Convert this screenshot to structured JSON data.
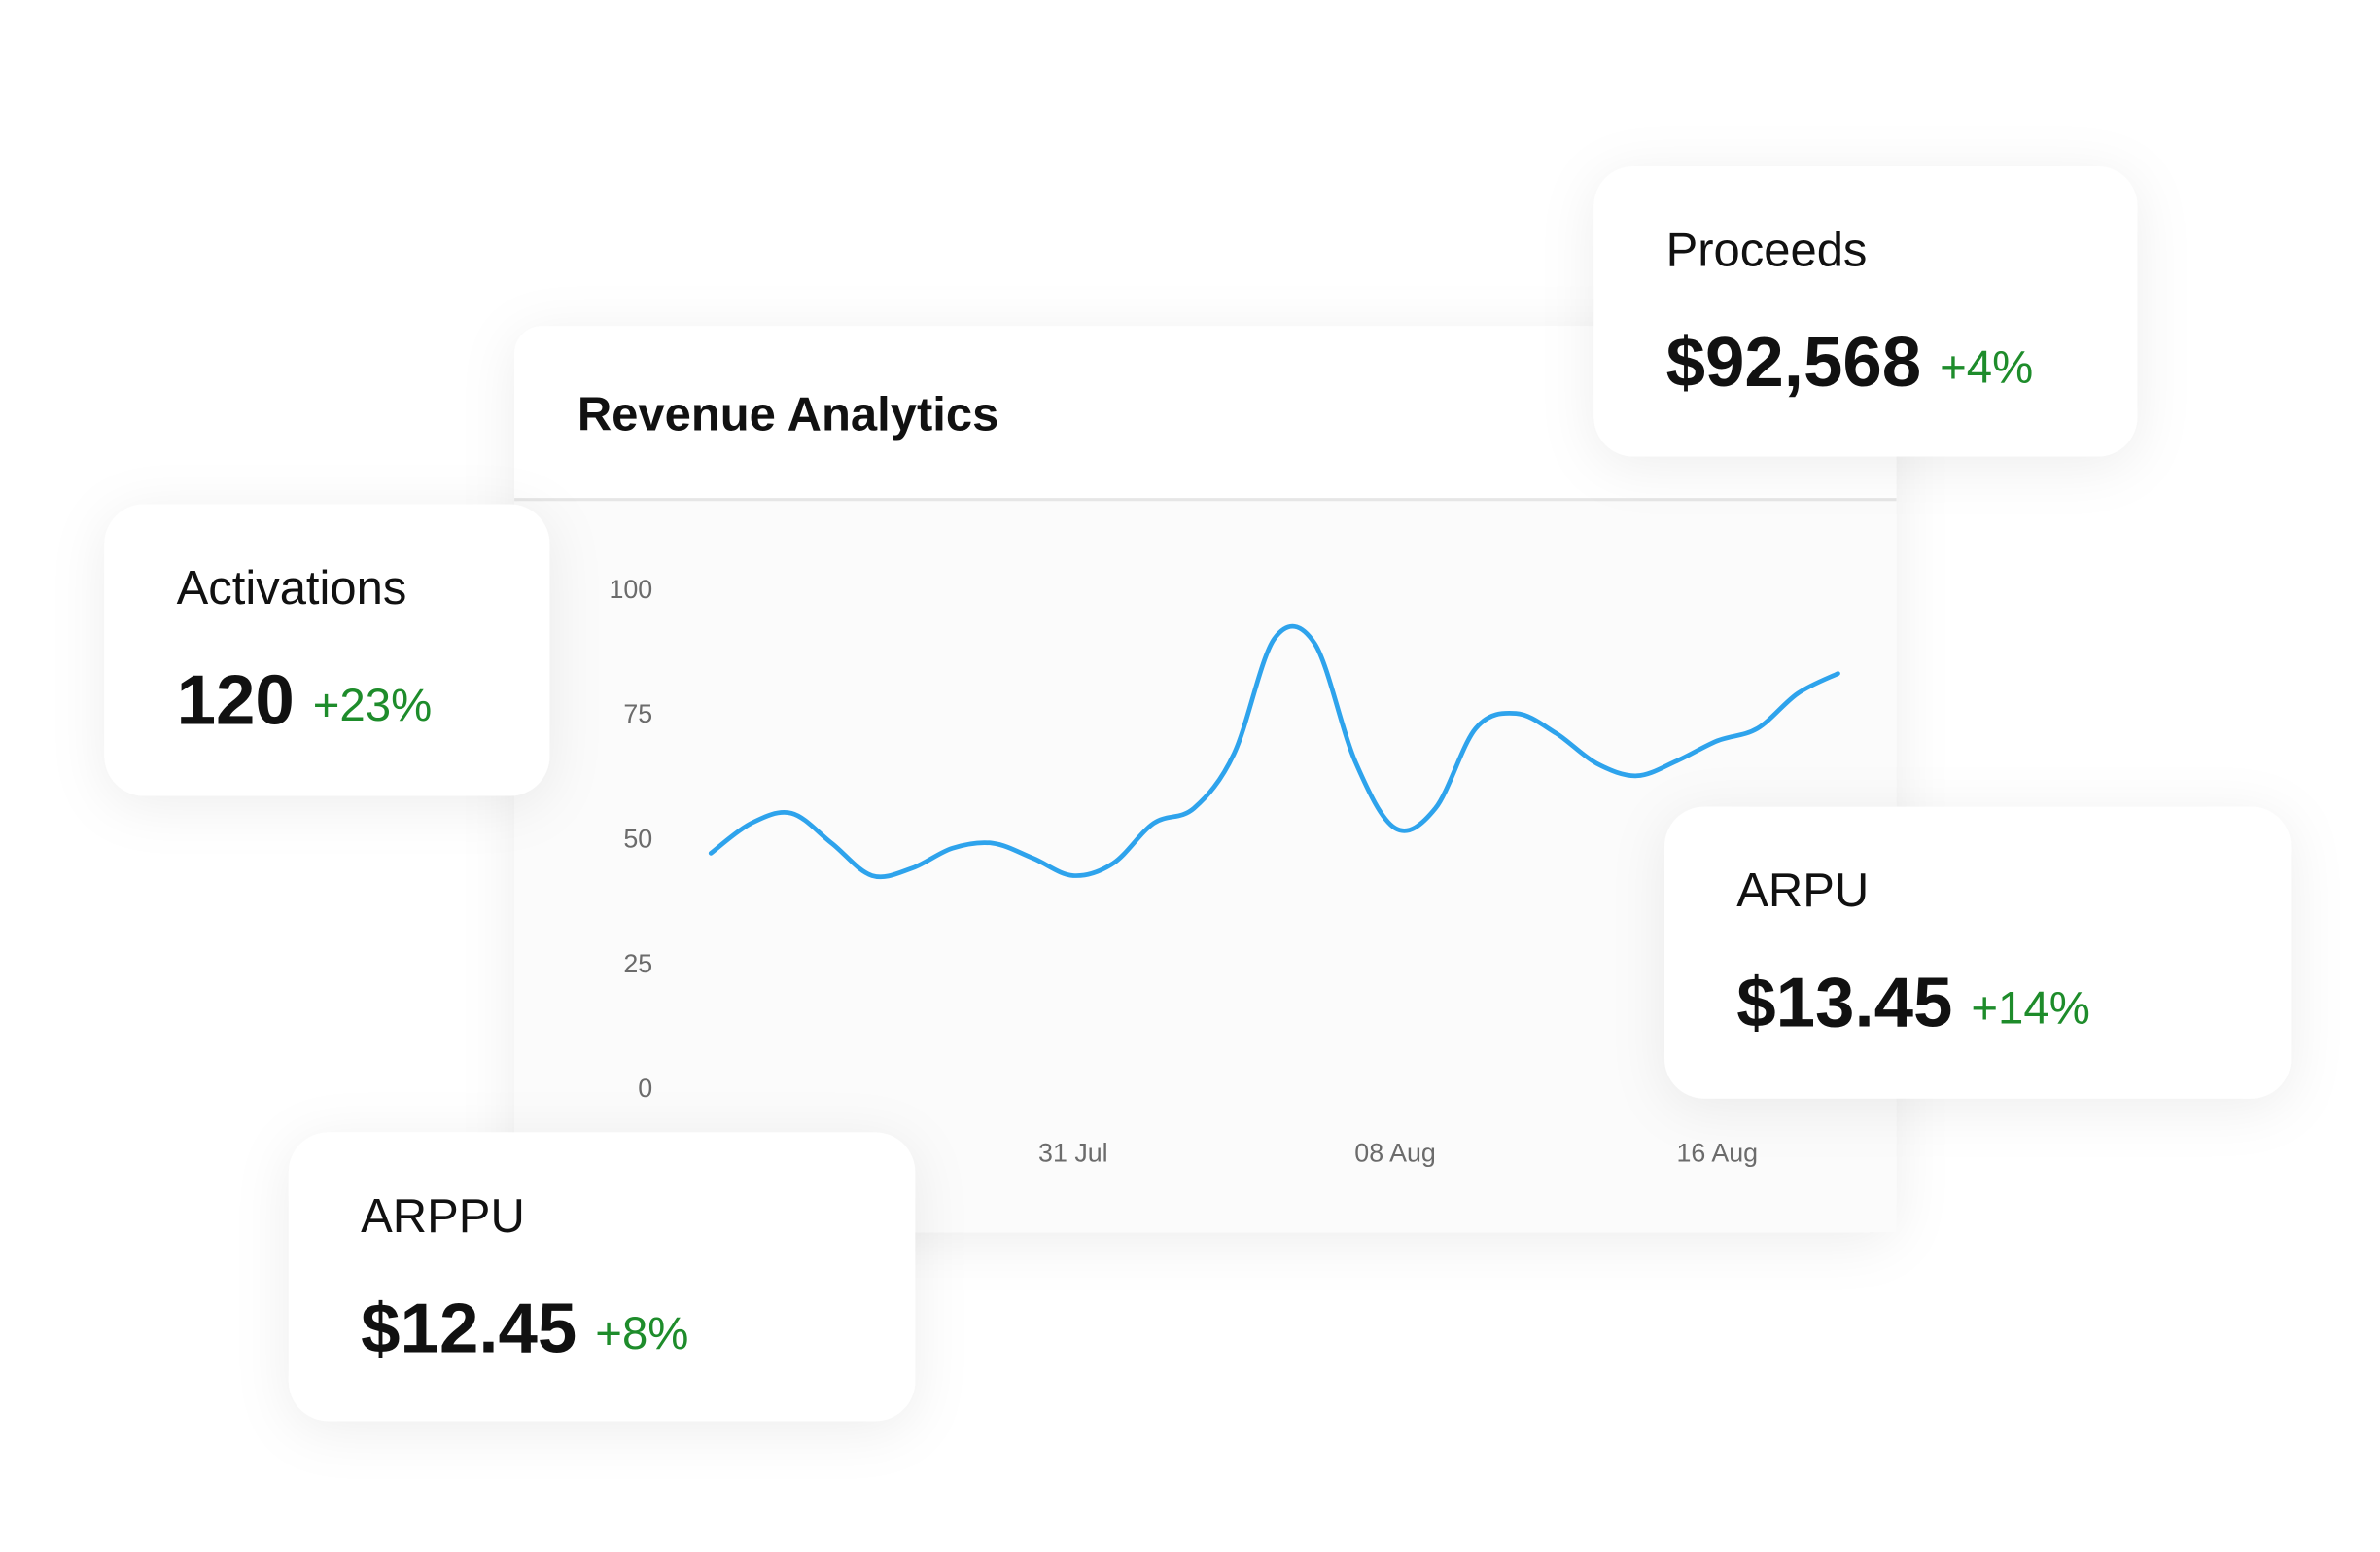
{
  "chart_data": {
    "type": "line",
    "title": "Revenue Analytics",
    "categories": [
      null,
      null,
      null,
      null,
      null,
      null,
      null,
      null,
      null,
      "31 Jul",
      null,
      null,
      null,
      null,
      null,
      null,
      null,
      "08 Aug",
      null,
      null,
      null,
      null,
      null,
      null,
      null,
      "16 Aug",
      null,
      null,
      null
    ],
    "series": [
      {
        "color": "#2ea3ec",
        "values": [
          47,
          53,
          55,
          49,
          42.5,
          44,
          48,
          49,
          46,
          42.5,
          45,
          53,
          56,
          67,
          90,
          89,
          65.5,
          52,
          56,
          72,
          75,
          71,
          65,
          62.5,
          65.5,
          69.5,
          72,
          79,
          83
        ]
      }
    ],
    "ylim": [
      0,
      100
    ],
    "yticks": [
      0,
      25,
      50,
      75,
      100
    ],
    "grid": false
  },
  "cards": [
    {
      "label": "Proceeds",
      "value": "$92,568",
      "change": "+4%"
    },
    {
      "label": "Activations",
      "value": "120",
      "change": "+23%"
    },
    {
      "label": "ARPU",
      "value": "$13.45",
      "change": "+14%"
    },
    {
      "label": "ARPPU",
      "value": "$12.45",
      "change": "+8%"
    }
  ]
}
